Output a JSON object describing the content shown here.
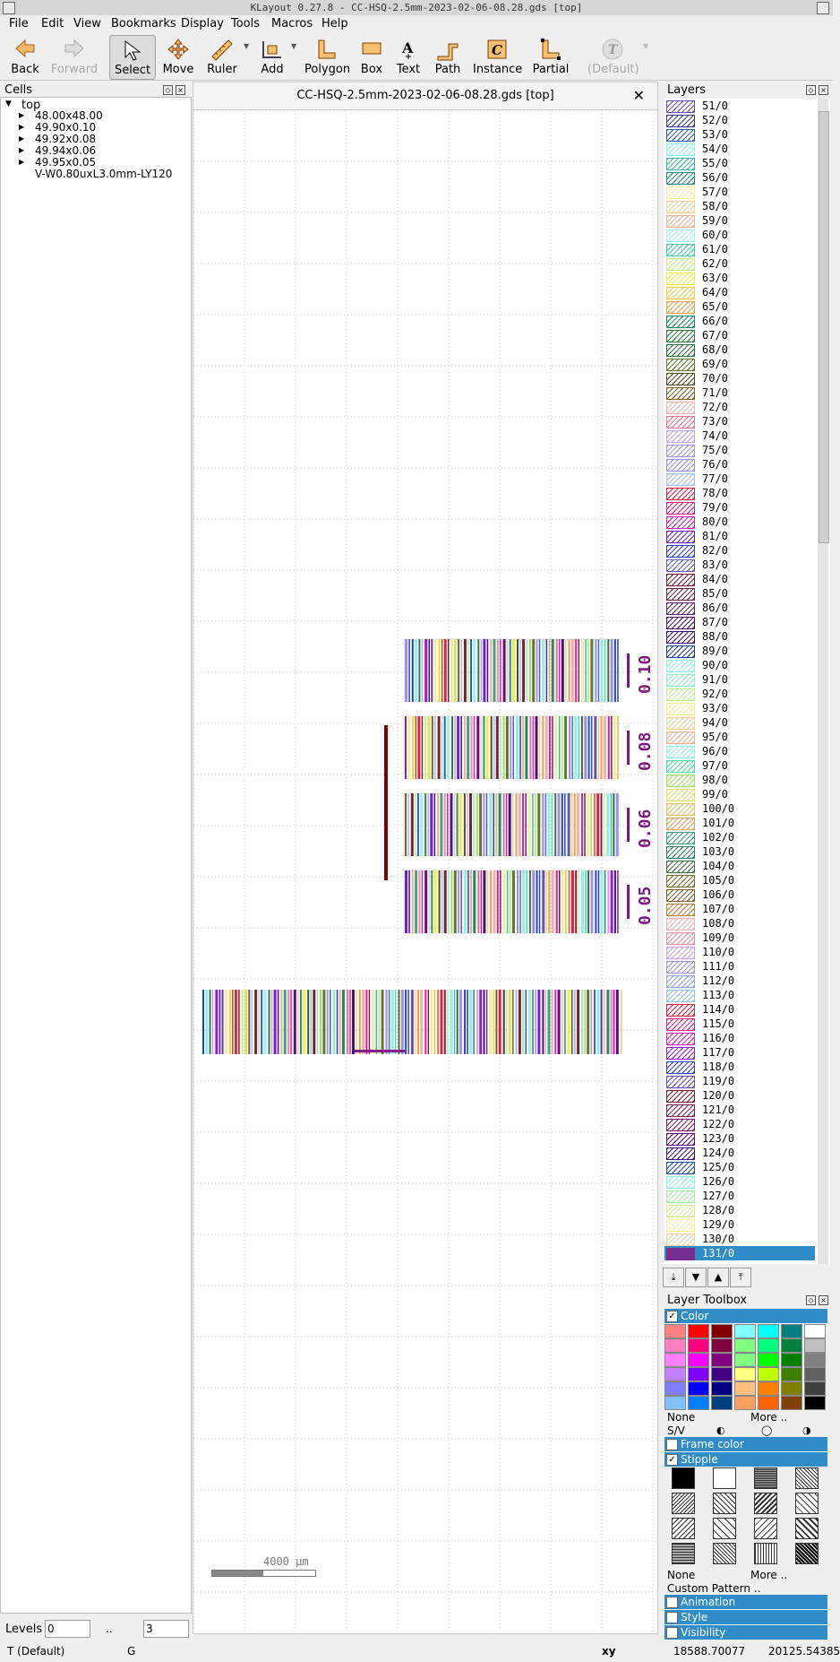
{
  "window": {
    "title": "KLayout 0.27.8 - CC-HSQ-2.5mm-2023-02-06-08.28.gds [top]"
  },
  "menu": [
    "File",
    "Edit",
    "View",
    "Bookmarks",
    "Display",
    "Tools",
    "Macros",
    "Help"
  ],
  "toolbar": {
    "back": "Back",
    "forward": "Forward",
    "select": "Select",
    "move": "Move",
    "ruler": "Ruler",
    "add": "Add",
    "polygon": "Polygon",
    "box": "Box",
    "text": "Text",
    "path": "Path",
    "instance": "Instance",
    "partial": "Partial",
    "default": "(Default)"
  },
  "cells": {
    "title": "Cells",
    "root": "top",
    "children": [
      "48.00x48.00",
      "49.90x0.10",
      "49.92x0.08",
      "49.94x0.06",
      "49.95x0.05",
      "V-W0.80uxL3.0mm-LY120"
    ],
    "levels_label": "Levels",
    "level_from": "0",
    "level_sep": "..",
    "level_to": "3"
  },
  "canvas": {
    "tab_title": "CC-HSQ-2.5mm-2023-02-06-08.28.gds [top]",
    "scale_label": "4000  µm",
    "block_labels": [
      "0.10",
      "0.08",
      "0.06",
      "0.05"
    ]
  },
  "layers": {
    "title": "Layers",
    "items": [
      "51/0",
      "52/0",
      "53/0",
      "54/0",
      "55/0",
      "56/0",
      "57/0",
      "58/0",
      "59/0",
      "60/0",
      "61/0",
      "62/0",
      "63/0",
      "64/0",
      "65/0",
      "66/0",
      "67/0",
      "68/0",
      "69/0",
      "70/0",
      "71/0",
      "72/0",
      "73/0",
      "74/0",
      "75/0",
      "76/0",
      "77/0",
      "78/0",
      "79/0",
      "80/0",
      "81/0",
      "82/0",
      "83/0",
      "84/0",
      "85/0",
      "86/0",
      "87/0",
      "88/0",
      "89/0",
      "90/0",
      "91/0",
      "92/0",
      "93/0",
      "94/0",
      "95/0",
      "96/0",
      "97/0",
      "98/0",
      "99/0",
      "100/0",
      "101/0",
      "102/0",
      "103/0",
      "104/0",
      "105/0",
      "106/0",
      "107/0",
      "108/0",
      "109/0",
      "110/0",
      "111/0",
      "112/0",
      "113/0",
      "114/0",
      "115/0",
      "116/0",
      "117/0",
      "118/0",
      "119/0",
      "120/0",
      "121/0",
      "122/0",
      "123/0",
      "124/0",
      "125/0",
      "126/0",
      "127/0",
      "128/0",
      "129/0",
      "130/0",
      "131/0"
    ],
    "colors": [
      "#6a4fb3",
      "#3c3c9c",
      "#2b5fb8",
      "#8cf0f0",
      "#3cb8b8",
      "#2a8a8a",
      "#f0f0a0",
      "#f0d090",
      "#f0b090",
      "#a0f0f0",
      "#40d0a0",
      "#c0f080",
      "#f0f040",
      "#f0d040",
      "#f0a040",
      "#208a60",
      "#308040",
      "#307040",
      "#607830",
      "#505020",
      "#806020",
      "#f0b0b0",
      "#f07090",
      "#c0a0f0",
      "#a090f0",
      "#9090f0",
      "#9cc0f0",
      "#e02040",
      "#e02080",
      "#d020c0",
      "#7020d0",
      "#3040d0",
      "#6060c0",
      "#7a2030",
      "#702040",
      "#602070",
      "#501070",
      "#401080",
      "#2040a0",
      "#90f0f0",
      "#90f0c0",
      "#c0f090",
      "#f0f090",
      "#f0d090",
      "#f0b090",
      "#90f0f0",
      "#50e0a0",
      "#a0e060",
      "#e0e060",
      "#e0c060",
      "#e0a060",
      "#40a080",
      "#308060",
      "#407040",
      "#707030",
      "#806030",
      "#c08040",
      "#f0b0b0",
      "#f090a0",
      "#d0a0f0",
      "#a090e0",
      "#90a0f0",
      "#90c0f0",
      "#e02040",
      "#e02080",
      "#e020c0",
      "#9020d0",
      "#3040d0",
      "#6050c0",
      "#802030",
      "#802050",
      "#802070",
      "#601080",
      "#401090",
      "#2050b0",
      "#90f0e0",
      "#a0f0a0",
      "#d0f090",
      "#f0f0a0",
      "#f0d0a0",
      "#7a2d90"
    ],
    "selected": "131/0"
  },
  "toolbox": {
    "title": "Layer Toolbox",
    "color_label": "Color",
    "none": "None",
    "more": "More ..",
    "sv": "S/V",
    "frame_color": "Frame color",
    "stipple": "Stipple",
    "custom_pattern": "Custom Pattern ..",
    "animation": "Animation",
    "style": "Style",
    "visibility": "Visibility",
    "palette": [
      [
        "#ff8080",
        "#ff0000",
        "#800000",
        "#80ffff",
        "#00ffff",
        "#008080",
        "#ffffff"
      ],
      [
        "#ff80c0",
        "#ff0080",
        "#800040",
        "#80ff80",
        "#00ff80",
        "#008040",
        "#c0c0c0"
      ],
      [
        "#ff80ff",
        "#ff00ff",
        "#800080",
        "#80ff80",
        "#00ff00",
        "#008000",
        "#808080"
      ],
      [
        "#c080ff",
        "#8000ff",
        "#400080",
        "#ffff80",
        "#c0ff00",
        "#408000",
        "#606060"
      ],
      [
        "#8080ff",
        "#0000ff",
        "#000080",
        "#ffc080",
        "#ff8000",
        "#808000",
        "#404040"
      ],
      [
        "#80c0ff",
        "#0080ff",
        "#004080",
        "#ffa060",
        "#ff6000",
        "#804000",
        "#000000"
      ]
    ]
  },
  "status": {
    "mode": "T (Default)",
    "grid": "G",
    "xy_label": "xy",
    "x": "18588.70077",
    "y": "20125.54385"
  }
}
